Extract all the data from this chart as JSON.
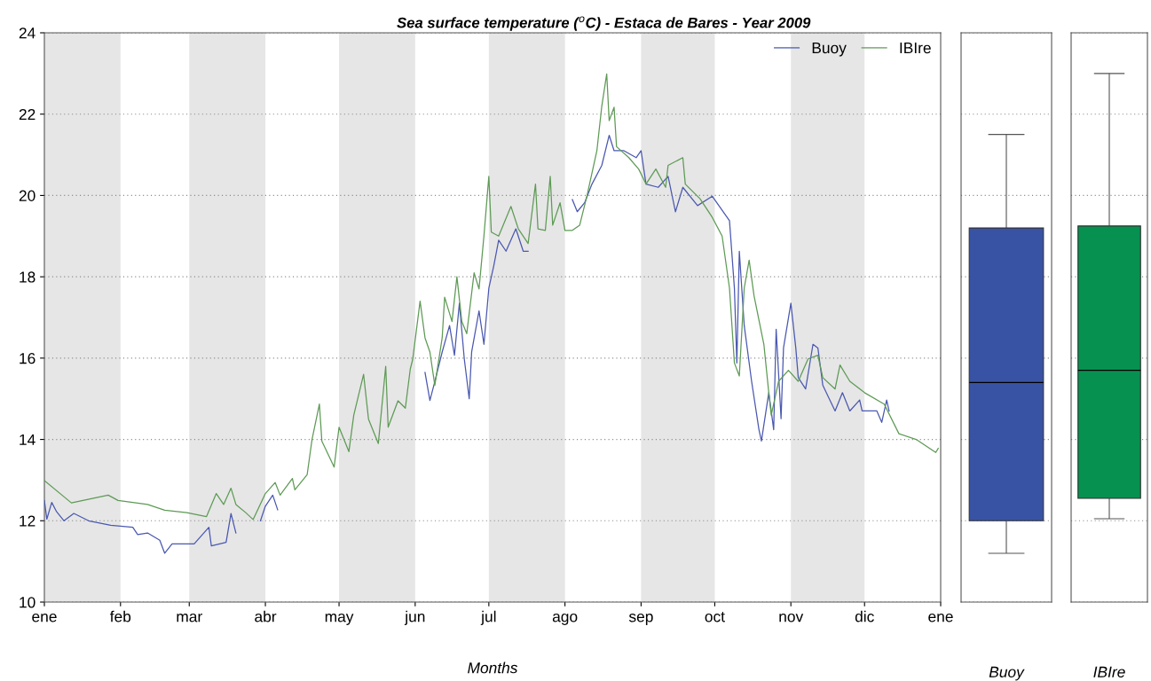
{
  "chart_data": [
    {
      "type": "line",
      "title": "Sea surface temperature ($^{o}$C) - Estaca de Bares - Year 2009",
      "xlabel": "Months",
      "xlim": [
        "2009-01-01",
        "2010-01-01"
      ],
      "xticks": [
        {
          "value": "2009-01-01",
          "label": "ene"
        },
        {
          "value": "2009-02-01",
          "label": "feb"
        },
        {
          "value": "2009-03-01",
          "label": "mar"
        },
        {
          "value": "2009-04-01",
          "label": "abr"
        },
        {
          "value": "2009-05-01",
          "label": "may"
        },
        {
          "value": "2009-06-01",
          "label": "jun"
        },
        {
          "value": "2009-07-01",
          "label": "jul"
        },
        {
          "value": "2009-08-01",
          "label": "ago"
        },
        {
          "value": "2009-09-01",
          "label": "sep"
        },
        {
          "value": "2009-10-01",
          "label": "oct"
        },
        {
          "value": "2009-11-01",
          "label": "nov"
        },
        {
          "value": "2009-12-01",
          "label": "dic"
        },
        {
          "value": "2010-01-01",
          "label": "ene"
        }
      ],
      "ylim": [
        10,
        24
      ],
      "yticks": [
        10,
        12,
        14,
        16,
        18,
        20,
        22,
        24
      ],
      "grid": "y",
      "legend": "top right",
      "line_style": "solid",
      "bands": [
        {
          "axis": "x",
          "from": "2009-01-01",
          "to": "2009-02-01",
          "color": "#e6e6e6"
        },
        {
          "axis": "x",
          "from": "2009-03-01",
          "to": "2009-04-01",
          "color": "#e6e6e6"
        },
        {
          "axis": "x",
          "from": "2009-05-01",
          "to": "2009-06-01",
          "color": "#e6e6e6"
        },
        {
          "axis": "x",
          "from": "2009-07-01",
          "to": "2009-08-01",
          "color": "#e6e6e6"
        },
        {
          "axis": "x",
          "from": "2009-09-01",
          "to": "2009-10-01",
          "color": "#e6e6e6"
        },
        {
          "axis": "x",
          "from": "2009-11-01",
          "to": "2009-12-01",
          "color": "#e6e6e6"
        }
      ],
      "series": [
        {
          "name": "Buoy",
          "color": "#4a58b0",
          "x": [
            "2009-01-01",
            "2009-01-02",
            "2009-01-04",
            "2009-01-06",
            "2009-01-09",
            "2009-01-13",
            "2009-01-19",
            "2009-01-28",
            "2009-02-06",
            "2009-02-08",
            "2009-02-12",
            "2009-02-17",
            "2009-02-19",
            "2009-02-22",
            "2009-03-03",
            "2009-03-09",
            "2009-03-10",
            "2009-03-16",
            "2009-03-18",
            "2009-03-20",
            "2009-03-25",
            "2009-03-30",
            "2009-04-01",
            "2009-04-04",
            "2009-04-06",
            "2009-05-01",
            "2009-06-05",
            "2009-06-07",
            "2009-06-09",
            "2009-06-12",
            "2009-06-15",
            "2009-06-17",
            "2009-06-19",
            "2009-06-21",
            "2009-06-23",
            "2009-06-24",
            "2009-06-27",
            "2009-06-29",
            "2009-07-01",
            "2009-07-03",
            "2009-07-05",
            "2009-07-08",
            "2009-07-12",
            "2009-07-15",
            "2009-07-17",
            "2009-07-25",
            "2009-08-04",
            "2009-08-06",
            "2009-08-09",
            "2009-08-12",
            "2009-08-16",
            "2009-08-19",
            "2009-08-21",
            "2009-08-25",
            "2009-08-30",
            "2009-09-01",
            "2009-09-03",
            "2009-09-08",
            "2009-09-12",
            "2009-09-15",
            "2009-09-18",
            "2009-09-24",
            "2009-09-30",
            "2009-10-07",
            "2009-10-09",
            "2009-10-10",
            "2009-10-11",
            "2009-10-13",
            "2009-10-16",
            "2009-10-19",
            "2009-10-20",
            "2009-10-23",
            "2009-10-25",
            "2009-10-26",
            "2009-10-28",
            "2009-10-29",
            "2009-11-01",
            "2009-11-03",
            "2009-11-04",
            "2009-11-07",
            "2009-11-10",
            "2009-11-12",
            "2009-11-14",
            "2009-11-19",
            "2009-11-22",
            "2009-11-25",
            "2009-11-29",
            "2009-11-30",
            "2009-12-06",
            "2009-12-08",
            "2009-12-10",
            "2009-12-11"
          ],
          "values": [
            12.5,
            12.04,
            12.45,
            12.22,
            12.0,
            12.18,
            12.0,
            11.89,
            11.84,
            11.66,
            11.7,
            11.52,
            11.2,
            11.43,
            11.43,
            11.84,
            11.38,
            11.47,
            12.18,
            11.7,
            null,
            12.0,
            12.36,
            12.63,
            12.27,
            null,
            15.65,
            14.96,
            15.42,
            16.15,
            16.8,
            16.07,
            17.35,
            15.98,
            15.0,
            16.15,
            17.16,
            16.34,
            17.72,
            18.27,
            18.9,
            18.63,
            19.18,
            18.63,
            18.63,
            null,
            19.9,
            19.6,
            19.82,
            20.28,
            20.74,
            21.48,
            21.1,
            21.1,
            20.93,
            21.1,
            20.28,
            20.2,
            20.47,
            19.6,
            20.2,
            19.75,
            19.98,
            19.38,
            17.72,
            15.88,
            18.63,
            16.8,
            15.43,
            14.24,
            13.96,
            15.15,
            14.24,
            16.71,
            14.51,
            16.25,
            17.35,
            16.25,
            15.52,
            15.24,
            16.34,
            16.25,
            15.33,
            14.7,
            15.15,
            14.7,
            14.97,
            14.7,
            14.7,
            14.42,
            14.97,
            14.7
          ]
        },
        {
          "name": "IBIre",
          "color": "#5e9a55",
          "x": [
            "2009-01-01",
            "2009-01-12",
            "2009-01-27",
            "2009-01-31",
            "2009-02-12",
            "2009-02-19",
            "2009-02-28",
            "2009-03-08",
            "2009-03-12",
            "2009-03-15",
            "2009-03-18",
            "2009-03-20",
            "2009-03-24",
            "2009-03-27",
            "2009-04-01",
            "2009-04-05",
            "2009-04-07",
            "2009-04-12",
            "2009-04-13",
            "2009-04-18",
            "2009-04-20",
            "2009-04-23",
            "2009-04-24",
            "2009-04-29",
            "2009-05-01",
            "2009-05-05",
            "2009-05-07",
            "2009-05-11",
            "2009-05-13",
            "2009-05-17",
            "2009-05-20",
            "2009-05-21",
            "2009-05-25",
            "2009-05-28",
            "2009-05-30",
            "2009-05-31",
            "2009-06-03",
            "2009-06-05",
            "2009-06-07",
            "2009-06-09",
            "2009-06-12",
            "2009-06-13",
            "2009-06-16",
            "2009-06-18",
            "2009-06-20",
            "2009-06-22",
            "2009-06-25",
            "2009-06-27",
            "2009-06-29",
            "2009-07-01",
            "2009-07-02",
            "2009-07-05",
            "2009-07-10",
            "2009-07-13",
            "2009-07-17",
            "2009-07-20",
            "2009-07-21",
            "2009-07-24",
            "2009-07-26",
            "2009-07-27",
            "2009-07-30",
            "2009-08-01",
            "2009-08-04",
            "2009-08-07",
            "2009-08-10",
            "2009-08-14",
            "2009-08-16",
            "2009-08-18",
            "2009-08-19",
            "2009-08-21",
            "2009-08-22",
            "2009-08-27",
            "2009-08-31",
            "2009-09-03",
            "2009-09-07",
            "2009-09-11",
            "2009-09-12",
            "2009-09-18",
            "2009-09-19",
            "2009-09-25",
            "2009-09-30",
            "2009-10-04",
            "2009-10-07",
            "2009-10-09",
            "2009-10-11",
            "2009-10-13",
            "2009-10-15",
            "2009-10-17",
            "2009-10-21",
            "2009-10-23",
            "2009-10-24",
            "2009-10-27",
            "2009-10-31",
            "2009-11-04",
            "2009-11-08",
            "2009-11-12",
            "2009-11-14",
            "2009-11-19",
            "2009-11-21",
            "2009-11-25",
            "2009-12-01",
            "2009-12-09",
            "2009-12-15",
            "2009-12-22",
            "2009-12-30",
            "2009-12-31"
          ],
          "values": [
            12.99,
            12.44,
            12.63,
            12.5,
            12.4,
            12.26,
            12.2,
            12.1,
            12.67,
            12.4,
            12.8,
            12.4,
            12.2,
            12.03,
            12.67,
            12.94,
            12.63,
            13.04,
            12.76,
            13.13,
            14.0,
            14.87,
            13.96,
            13.32,
            14.3,
            13.7,
            14.6,
            15.6,
            14.5,
            13.9,
            15.8,
            14.3,
            14.95,
            14.77,
            15.73,
            15.97,
            17.4,
            16.5,
            16.15,
            15.33,
            16.5,
            17.5,
            16.9,
            18.0,
            16.9,
            16.6,
            18.1,
            17.7,
            19.0,
            20.47,
            19.1,
            19.0,
            19.73,
            19.18,
            18.82,
            20.28,
            19.18,
            19.14,
            20.47,
            19.27,
            19.82,
            19.14,
            19.14,
            19.27,
            20.0,
            21.1,
            22.2,
            22.99,
            21.84,
            22.17,
            21.2,
            20.93,
            20.65,
            20.28,
            20.65,
            20.2,
            20.74,
            20.93,
            20.28,
            19.92,
            19.46,
            19.0,
            17.72,
            15.88,
            15.56,
            17.72,
            18.41,
            17.53,
            16.34,
            15.15,
            14.6,
            15.43,
            15.7,
            15.43,
            15.98,
            16.07,
            15.52,
            15.24,
            15.83,
            15.43,
            15.15,
            14.87,
            14.14,
            14.0,
            13.68,
            13.78
          ]
        }
      ]
    },
    {
      "type": "box",
      "categories": [
        "Buoy"
      ],
      "ylim": [
        10,
        24
      ],
      "yticks": [
        10,
        12,
        14,
        16,
        18,
        20,
        22,
        24
      ],
      "grid": "y",
      "tick_labels": "x",
      "colors": [
        "#3953a4"
      ],
      "boxes": [
        {
          "low": 11.2,
          "q1": 12.0,
          "median": 15.4,
          "q3": 19.2,
          "high": 21.5
        }
      ]
    },
    {
      "type": "box",
      "categories": [
        "IBIre"
      ],
      "ylim": [
        10,
        24
      ],
      "yticks": [
        10,
        12,
        14,
        16,
        18,
        20,
        22,
        24
      ],
      "grid": "y",
      "tick_labels": "x",
      "colors": [
        "#079150"
      ],
      "boxes": [
        {
          "low": 12.05,
          "q1": 12.55,
          "median": 15.7,
          "q3": 19.25,
          "high": 23.0
        }
      ]
    }
  ]
}
